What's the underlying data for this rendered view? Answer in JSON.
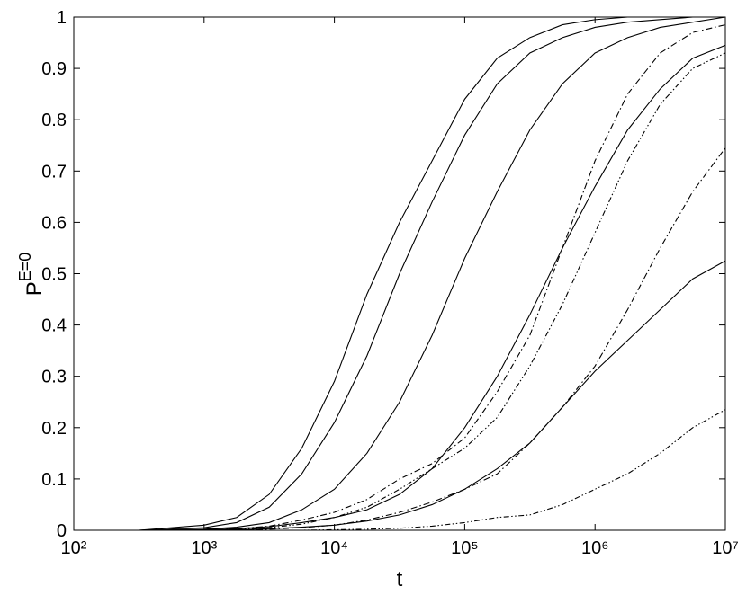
{
  "chart_data": {
    "type": "line",
    "xlabel": "t",
    "ylabel": "P",
    "ylabel_superscript": "E=0",
    "xscale": "log",
    "xlim": [
      100,
      10000000
    ],
    "ylim": [
      0,
      1
    ],
    "xticks": [
      {
        "value": 100,
        "label": "10²"
      },
      {
        "value": 1000,
        "label": "10³"
      },
      {
        "value": 10000,
        "label": "10⁴"
      },
      {
        "value": 100000,
        "label": "10⁵"
      },
      {
        "value": 1000000,
        "label": "10⁶"
      },
      {
        "value": 10000000,
        "label": "10⁷"
      }
    ],
    "yticks": [
      0,
      0.1,
      0.2,
      0.3,
      0.4,
      0.5,
      0.6,
      0.7,
      0.8,
      0.9,
      1
    ],
    "grid": false,
    "x": [
      100,
      316,
      1000,
      1778,
      3162,
      5623,
      10000,
      17783,
      31623,
      56234,
      100000,
      177828,
      316228,
      562341,
      1000000,
      1778279,
      3162278,
      5623413,
      10000000
    ],
    "series": [
      {
        "color": "#000000",
        "dash": "solid",
        "values": [
          0,
          0,
          0.01,
          0.025,
          0.07,
          0.16,
          0.29,
          0.46,
          0.6,
          0.72,
          0.84,
          0.92,
          0.96,
          0.985,
          0.995,
          1,
          1,
          1,
          1
        ]
      },
      {
        "color": "#000000",
        "dash": "solid",
        "values": [
          0,
          0,
          0.005,
          0.015,
          0.045,
          0.11,
          0.21,
          0.34,
          0.5,
          0.64,
          0.77,
          0.87,
          0.93,
          0.96,
          0.98,
          0.99,
          0.995,
          1,
          1
        ]
      },
      {
        "color": "#000000",
        "dash": "solid",
        "values": [
          0,
          0,
          0.002,
          0.006,
          0.015,
          0.04,
          0.08,
          0.15,
          0.25,
          0.38,
          0.53,
          0.66,
          0.78,
          0.87,
          0.93,
          0.96,
          0.98,
          0.99,
          1
        ]
      },
      {
        "color": "#000000",
        "dash": "solid",
        "values": [
          0,
          0,
          0.001,
          0.003,
          0.007,
          0.015,
          0.025,
          0.04,
          0.07,
          0.12,
          0.2,
          0.3,
          0.42,
          0.55,
          0.67,
          0.78,
          0.86,
          0.92,
          0.945
        ]
      },
      {
        "color": "#000000",
        "dash": "solid",
        "values": [
          0,
          0,
          0,
          0.001,
          0.003,
          0.006,
          0.01,
          0.018,
          0.03,
          0.05,
          0.08,
          0.12,
          0.17,
          0.24,
          0.31,
          0.37,
          0.43,
          0.49,
          0.525
        ]
      },
      {
        "color": "#000000",
        "dash": "dashdot",
        "values": [
          0,
          0,
          0.001,
          0.003,
          0.008,
          0.02,
          0.035,
          0.06,
          0.1,
          0.13,
          0.18,
          0.27,
          0.38,
          0.55,
          0.72,
          0.85,
          0.93,
          0.97,
          0.985
        ]
      },
      {
        "color": "#000000",
        "dash": "dashdotdot",
        "values": [
          0,
          0,
          0,
          0.002,
          0.005,
          0.012,
          0.025,
          0.045,
          0.08,
          0.12,
          0.16,
          0.22,
          0.32,
          0.44,
          0.58,
          0.72,
          0.83,
          0.9,
          0.93
        ]
      },
      {
        "color": "#000000",
        "dash": "dashdot",
        "values": [
          0,
          0,
          0,
          0.001,
          0.002,
          0.005,
          0.01,
          0.02,
          0.035,
          0.055,
          0.08,
          0.11,
          0.17,
          0.24,
          0.32,
          0.43,
          0.55,
          0.66,
          0.745
        ]
      },
      {
        "color": "#000000",
        "dash": "dashdotdot",
        "values": [
          0,
          0,
          0,
          0,
          0,
          0,
          0.001,
          0.002,
          0.004,
          0.008,
          0.015,
          0.025,
          0.03,
          0.05,
          0.08,
          0.11,
          0.15,
          0.2,
          0.235
        ]
      }
    ]
  }
}
